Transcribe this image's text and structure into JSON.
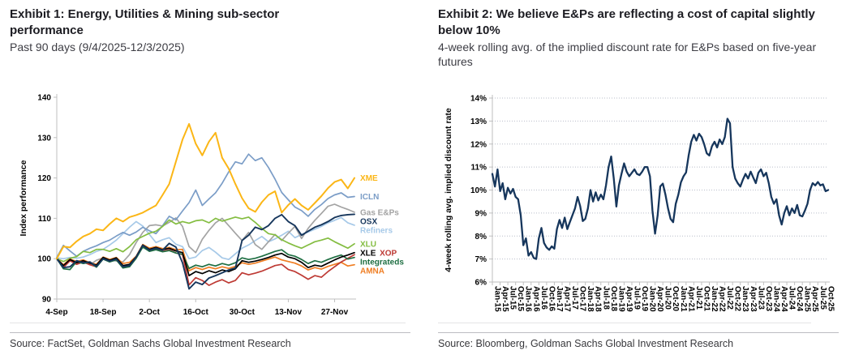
{
  "left": {
    "title": "Exhibit 1: Energy, Utilities & Mining sub-sector performance",
    "subtitle": "Past 90 days (9/4/2025-12/3/2025)",
    "source": "Source: FactSet, Goldman Sachs Global Investment Research"
  },
  "right": {
    "title": "Exhibit 2: We believe E&Ps are reflecting a cost of capital slightly below 10%",
    "subtitle": "4-week rolling avg. of the implied discount rate for E&Ps based on five-year futures",
    "source": "Source: Bloomberg, Goldman Sachs Global Investment Research"
  },
  "colors": {
    "axis": "#bfbfbf",
    "tick_text": "#000000",
    "gridline": "#b9bdc9",
    "navy": "#16365c"
  },
  "chart_data": [
    {
      "type": "line",
      "title": "Exhibit 1: Energy, Utilities & Mining sub-sector performance",
      "xlabel": "",
      "ylabel": "Index performance",
      "ylim": [
        90,
        140
      ],
      "yticks": [
        90,
        100,
        110,
        120,
        130,
        140
      ],
      "ytick_labels": [
        "90",
        "100",
        "110",
        "120",
        "130",
        "140"
      ],
      "xticklabels": [
        "4-Sep",
        "18-Sep",
        "2-Oct",
        "16-Oct",
        "30-Oct",
        "13-Nov",
        "27-Nov"
      ],
      "xticks_day_index": [
        0,
        14,
        28,
        42,
        56,
        70,
        84
      ],
      "days_total": 90,
      "grid": false,
      "legend_position": "line-end",
      "legend_join": [
        [
          "XLE",
          "XOP"
        ]
      ],
      "series": [
        {
          "name": "Refiners",
          "color": "#a6c9e8",
          "width": 1.7,
          "values": [
            100.2,
            100,
            100.3,
            100.1,
            100.4,
            101,
            101.8,
            102.3,
            103.4,
            104.6,
            106.2,
            107.8,
            109.2,
            108.1,
            106,
            104,
            104.7,
            105.2,
            103.6,
            103,
            100,
            100.4,
            102,
            102.8,
            101.6,
            100.2,
            99.8,
            101.2,
            102.6,
            103.4,
            104.5,
            105.5,
            104.2,
            104.9,
            105.8,
            106.8,
            105.2,
            106,
            106.6,
            107.3,
            108,
            108.9,
            109.5,
            110.2,
            108.9,
            108.3
          ]
        },
        {
          "name": "Gas E&Ps",
          "color": "#a3a3a3",
          "width": 1.7,
          "values": [
            100,
            98.5,
            99.5,
            99,
            99.3,
            98.5,
            99.6,
            100.2,
            99.8,
            99.4,
            99.2,
            101,
            104,
            106.5,
            108.2,
            108.4,
            108.1,
            109,
            110.1,
            108,
            103,
            101.5,
            104.8,
            107,
            108.9,
            110,
            108.2,
            106.3,
            104.5,
            106.5,
            103.5,
            102.3,
            104.2,
            106,
            104.5,
            106.3,
            108,
            105,
            107.5,
            109.5,
            111.2,
            113,
            113.5,
            112.8,
            112.2,
            111.5
          ]
        },
        {
          "name": "ICLN",
          "color": "#7b9dc7",
          "width": 1.7,
          "values": [
            100.3,
            103.3,
            101.9,
            100.6,
            101.8,
            102.6,
            103.2,
            104,
            104.6,
            105.6,
            106.5,
            105.8,
            106.6,
            107.8,
            106.9,
            106.2,
            108.2,
            110.5,
            109.6,
            111.8,
            113.9,
            117,
            113.2,
            114.8,
            116.3,
            118.7,
            121.5,
            124,
            123.5,
            125.9,
            124.3,
            125,
            122.6,
            119.7,
            116.4,
            114.6,
            112.8,
            111.9,
            110.5,
            112.2,
            113.4,
            114.9,
            115.8,
            116.3,
            115.2,
            115.4
          ]
        },
        {
          "name": "XLU",
          "color": "#84bd41",
          "width": 1.7,
          "values": [
            100,
            99.3,
            100.1,
            100.5,
            101.8,
            101.5,
            102.3,
            102.3,
            101.8,
            102.5,
            101.7,
            103,
            104.7,
            105.5,
            106.3,
            106.8,
            108,
            109.6,
            108.6,
            109.2,
            108.8,
            109.4,
            109.6,
            108.9,
            110,
            109.3,
            109.8,
            110.3,
            109.9,
            110.3,
            109,
            107.5,
            106.2,
            105.9,
            104.7,
            103.9,
            103.2,
            102.6,
            103.4,
            104.2,
            104.6,
            105.1,
            104.2,
            103.4,
            102.6,
            103.7
          ]
        },
        {
          "name": "AMNA",
          "color": "#ef7d22",
          "width": 1.7,
          "values": [
            100,
            98.5,
            99.9,
            99.3,
            99.7,
            99,
            98.6,
            100.4,
            99.8,
            100.3,
            98.8,
            99.1,
            100.6,
            103.5,
            102.6,
            103,
            102.5,
            102.8,
            102.2,
            102.3,
            97,
            97.8,
            97.3,
            97.9,
            97.5,
            98,
            97.6,
            98.1,
            99,
            98.6,
            98.9,
            99.4,
            99.9,
            100.4,
            99.7,
            99.3,
            98.9,
            98.2,
            97.2,
            97.8,
            97.4,
            98.1,
            98.6,
            99.1,
            98.2,
            98.5
          ]
        },
        {
          "name": "XOP",
          "color": "#be3a34",
          "width": 1.7,
          "values": [
            100,
            97.8,
            99.5,
            98.6,
            99.2,
            98.5,
            98,
            100.1,
            99.3,
            99.9,
            97.9,
            98.2,
            100.3,
            103.3,
            102,
            102.5,
            101.8,
            102.2,
            101.4,
            101,
            93.5,
            95.3,
            94.6,
            93.4,
            94.2,
            94.8,
            94,
            94.6,
            96.5,
            96,
            96.4,
            96.9,
            97.6,
            98.3,
            98.6,
            97.3,
            96.8,
            95.9,
            94.9,
            95.8,
            95.4,
            96.8,
            98,
            99.2,
            100.1,
            101
          ]
        },
        {
          "name": "Integrateds",
          "color": "#1f6f43",
          "width": 1.7,
          "values": [
            100,
            97.5,
            97.3,
            99.3,
            98.8,
            99.1,
            97.9,
            99.9,
            99.2,
            99.7,
            97.7,
            98,
            100.1,
            102.9,
            101.8,
            102.2,
            101.7,
            102,
            101.4,
            101.1,
            97.6,
            98.4,
            98,
            98.6,
            98.2,
            98.8,
            98.4,
            99,
            100.2,
            99.8,
            100.1,
            100.6,
            101.2,
            101.8,
            102.2,
            101,
            100.6,
            99.8,
            98.8,
            99.5,
            99.1,
            99.8,
            100.4,
            100.9,
            99.9,
            100.3
          ]
        },
        {
          "name": "XLE",
          "color": "#000000",
          "width": 1.7,
          "values": [
            100,
            98.3,
            99.8,
            99,
            99.5,
            98.9,
            98.4,
            100.3,
            99.6,
            100.2,
            98.3,
            98.6,
            100.5,
            103.4,
            102.3,
            102.8,
            102.2,
            102.6,
            101.9,
            101.5,
            95.8,
            96.8,
            96.3,
            97,
            96.5,
            97.2,
            96.8,
            97.5,
            99.5,
            99.1,
            99.4,
            99.8,
            100.3,
            100.9,
            101.3,
            100.4,
            100,
            99.1,
            97.8,
            98.4,
            98.1,
            98.9,
            99.7,
            100.4,
            100.9,
            101.5
          ]
        },
        {
          "name": "OSX",
          "color": "#16365c",
          "width": 1.9,
          "values": [
            100,
            97.8,
            98,
            99.5,
            99,
            99.2,
            98.1,
            100,
            99.4,
            99.9,
            98,
            98.3,
            100.4,
            103.3,
            102.1,
            102.6,
            102.1,
            103.8,
            102.9,
            99,
            92.5,
            94.2,
            93.6,
            95.2,
            95.8,
            96.5,
            97.2,
            97.7,
            104.5,
            105.8,
            107.8,
            107.2,
            108.2,
            110,
            110.9,
            109.2,
            108.2,
            105.8,
            106.8,
            107.8,
            108.4,
            109.2,
            110.2,
            110.7,
            110.9,
            111
          ]
        },
        {
          "name": "XME",
          "color": "#fbb616",
          "width": 2.0,
          "values": [
            100,
            103,
            102.8,
            104.3,
            105.5,
            106.2,
            107.3,
            107,
            108.6,
            110,
            109.2,
            110.3,
            110.8,
            111.4,
            112.3,
            113.2,
            115.8,
            118.5,
            124,
            129.5,
            133.4,
            128.5,
            125.6,
            129,
            131.2,
            125,
            122.3,
            118.5,
            115,
            112.5,
            111.6,
            114,
            115.8,
            116.7,
            111.4,
            113.3,
            114.8,
            113.2,
            112.1,
            113.8,
            115.5,
            117.5,
            119,
            119.6,
            117.4,
            120
          ]
        }
      ]
    },
    {
      "type": "line",
      "title": "Exhibit 2: We believe E&Ps are reflecting a cost of capital slightly below 10%",
      "xlabel": "",
      "ylabel": "4-week rolling avg. implied discount rate",
      "ylim": [
        6,
        14
      ],
      "yticks": [
        6,
        7,
        8,
        9,
        10,
        11,
        12,
        13,
        14
      ],
      "ytick_labels": [
        "6%",
        "7%",
        "8%",
        "9%",
        "10%",
        "11%",
        "12%",
        "13%",
        "14%"
      ],
      "xticklabels": [
        "Jan-15",
        "Apr-15",
        "Jul-15",
        "Oct-15",
        "Jan-16",
        "Apr-16",
        "Jul-16",
        "Oct-16",
        "Jan-17",
        "Apr-17",
        "Jul-17",
        "Oct-17",
        "Jan-18",
        "Apr-18",
        "Jul-18",
        "Oct-18",
        "Jan-19",
        "Apr-19",
        "Jul-19",
        "Oct-19",
        "Jan-20",
        "Apr-20",
        "Jul-20",
        "Oct-20",
        "Jan-21",
        "Apr-21",
        "Jul-21",
        "Oct-21",
        "Jan-22",
        "Apr-22",
        "Jul-22",
        "Oct-22",
        "Jan-23",
        "Apr-23",
        "Jul-23",
        "Oct-23",
        "Jan-24",
        "Apr-24",
        "Jul-24",
        "Oct-24",
        "Jan-25",
        "Apr-25",
        "Jul-25",
        "Oct-25"
      ],
      "xtick_every": 3,
      "grid": "dotted-horizontal",
      "legend_position": null,
      "series": [
        {
          "name": "E&Ps implied discount rate",
          "color": "#16365c",
          "width": 2.3,
          "values": [
            10.7,
            10.15,
            10.9,
            9.95,
            10.3,
            9.6,
            10.1,
            9.85,
            10.05,
            9.7,
            9.6,
            8.9,
            7.6,
            7.9,
            7.15,
            7.3,
            7.05,
            7.0,
            7.9,
            8.35,
            7.7,
            7.5,
            7.4,
            7.55,
            7.45,
            8.3,
            8.7,
            8.35,
            8.8,
            8.3,
            8.6,
            8.9,
            9.2,
            9.7,
            9.3,
            8.65,
            8.75,
            9.2,
            10.0,
            9.5,
            9.9,
            9.55,
            9.8,
            9.6,
            10.2,
            11.0,
            11.46,
            10.5,
            9.28,
            10.2,
            10.7,
            11.16,
            10.8,
            10.6,
            10.75,
            10.9,
            10.7,
            10.65,
            10.8,
            11.0,
            11.0,
            10.6,
            9.1,
            8.1,
            8.9,
            10.16,
            10.28,
            9.8,
            9.2,
            8.75,
            8.6,
            9.4,
            9.8,
            10.34,
            10.6,
            10.76,
            11.5,
            12.1,
            12.4,
            12.15,
            12.45,
            12.3,
            12.0,
            11.6,
            11.5,
            11.9,
            12.1,
            11.85,
            12.2,
            12.0,
            12.3,
            13.1,
            12.9,
            11.0,
            10.5,
            10.3,
            10.15,
            10.45,
            10.7,
            10.5,
            10.8,
            10.55,
            10.3,
            10.75,
            10.9,
            10.6,
            10.75,
            10.3,
            9.7,
            9.4,
            9.6,
            8.9,
            8.5,
            9.0,
            9.3,
            8.9,
            9.2,
            9.0,
            9.35,
            8.9,
            8.85,
            9.1,
            9.4,
            10.0,
            10.3,
            10.2,
            10.35,
            10.2,
            10.25,
            9.95,
            10.0
          ]
        }
      ]
    }
  ]
}
